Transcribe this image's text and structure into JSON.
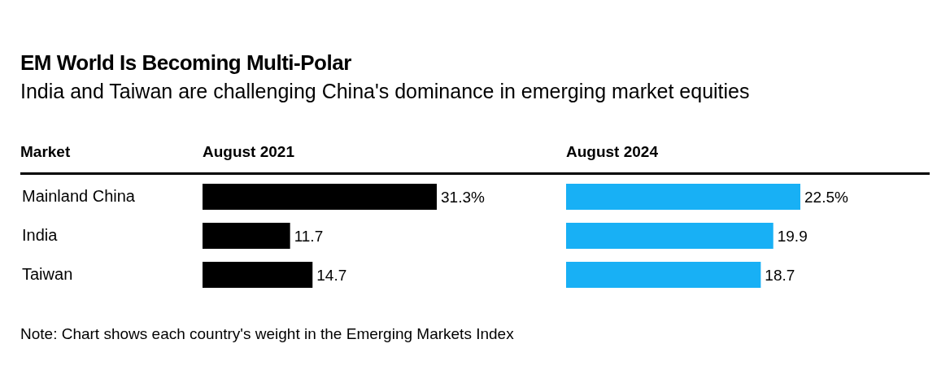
{
  "chart_data": [
    {
      "type": "bar",
      "orientation": "horizontal",
      "title": "EM World Is Becoming Multi-Polar",
      "subtitle": "India and Taiwan are challenging China's dominance in emerging market equities",
      "ylabel": "Market",
      "xlabel": "August 2021",
      "categories": [
        "Mainland China",
        "India",
        "Taiwan"
      ],
      "values": [
        31.3,
        11.7,
        14.7
      ],
      "value_labels": [
        "31.3%",
        "11.7",
        "14.7"
      ],
      "color": "#000000",
      "tick_labels": "y",
      "annotations": [
        "Note: Chart shows each country's weight in the Emerging Markets Index"
      ]
    },
    {
      "type": "bar",
      "orientation": "horizontal",
      "xlabel": "August 2024",
      "values": [
        22.5,
        19.9,
        18.7
      ],
      "value_labels": [
        "22.5%",
        "19.9",
        "18.7"
      ],
      "color": "#18b0f5",
      "tick_labels": false
    }
  ]
}
